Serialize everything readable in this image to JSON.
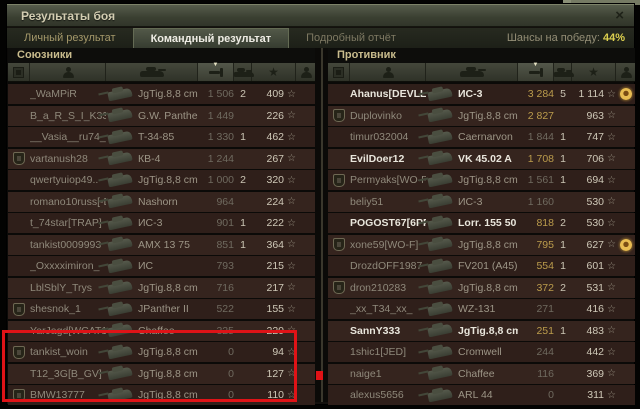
{
  "window": {
    "title": "Результаты боя",
    "close_icon": "×"
  },
  "tabs": [
    {
      "label": "Личный результат"
    },
    {
      "label": "Командный результат"
    },
    {
      "label": "Подробный отчёт"
    }
  ],
  "chances": {
    "label": "Шансы на победу:",
    "value": "44%"
  },
  "icons": {
    "star_outline": "☆",
    "star_filled": "★",
    "sort_arrow": "▼"
  },
  "columns": [
    "platoon",
    "player",
    "vehicle",
    "damage",
    "frags",
    "experience",
    "achievements"
  ],
  "colors": {
    "accent_gold": "#ddd04f",
    "damage_gold": "#bb9c4c",
    "annotation_red": "#df1317"
  },
  "allies": {
    "title": "Союзники",
    "rows": [
      {
        "name": "_WaMPiR",
        "tank": "JgTig.8,8 cm",
        "dmg": "1 506",
        "kills": "2",
        "xp": "409",
        "platoon": false,
        "medal": false,
        "bright": false,
        "gold": false
      },
      {
        "name": "B_a_R_S_I_K33rus..",
        "tank": "G.W. Panther",
        "dmg": "1 449",
        "kills": "",
        "xp": "226",
        "platoon": false,
        "medal": false,
        "bright": false,
        "gold": false
      },
      {
        "name": "__Vasia__ru74_",
        "tank": "T-34-85",
        "dmg": "1 330",
        "kills": "1",
        "xp": "462",
        "platoon": false,
        "medal": false,
        "bright": false,
        "gold": false
      },
      {
        "name": "vartanush28",
        "tank": "КВ-4",
        "dmg": "1 244",
        "kills": "",
        "xp": "267",
        "platoon": true,
        "medal": false,
        "bright": false,
        "gold": false
      },
      {
        "name": "qwertyuiop49..",
        "tank": "JgTig.8,8 cm",
        "dmg": "1 000",
        "kills": "2",
        "xp": "320",
        "platoon": false,
        "medal": false,
        "bright": false,
        "gold": false
      },
      {
        "name": "romano10russ[-DOG]",
        "tank": "Nashorn",
        "dmg": "964",
        "kills": "",
        "xp": "224",
        "platoon": false,
        "medal": false,
        "bright": false,
        "gold": false
      },
      {
        "name": "t_74star[TRAP]",
        "tank": "ИС-3",
        "dmg": "901",
        "kills": "1",
        "xp": "222",
        "platoon": false,
        "medal": false,
        "bright": false,
        "gold": false
      },
      {
        "name": "tankist0009993",
        "tank": "AMX 13 75",
        "dmg": "851",
        "kills": "1",
        "xp": "364",
        "platoon": false,
        "medal": false,
        "bright": false,
        "gold": false
      },
      {
        "name": "_Oxxxximiron_",
        "tank": "ИС",
        "dmg": "793",
        "kills": "",
        "xp": "215",
        "platoon": false,
        "medal": false,
        "bright": false,
        "gold": false
      },
      {
        "name": "LblSblY_Trys",
        "tank": "JgTig.8,8 cm",
        "dmg": "716",
        "kills": "",
        "xp": "217",
        "platoon": false,
        "medal": false,
        "bright": false,
        "gold": false
      },
      {
        "name": "shesnok_1",
        "tank": "JPanther II",
        "dmg": "522",
        "kills": "",
        "xp": "155",
        "platoon": true,
        "medal": false,
        "bright": false,
        "gold": false
      },
      {
        "name": "YarJagd[WCAT1]",
        "tank": "Chaffee",
        "dmg": "325",
        "kills": "",
        "xp": "220",
        "platoon": false,
        "medal": false,
        "bright": false,
        "gold": false
      },
      {
        "name": "tankist_woin",
        "tank": "JgTig.8,8 cm",
        "dmg": "0",
        "kills": "",
        "xp": "94",
        "platoon": true,
        "medal": false,
        "bright": false,
        "gold": false
      },
      {
        "name": "T12_3G[B_GV]",
        "tank": "JgTig.8,8 cm",
        "dmg": "0",
        "kills": "",
        "xp": "127",
        "platoon": false,
        "medal": false,
        "bright": false,
        "gold": false
      },
      {
        "name": "BMW13777",
        "tank": "JgTig.8,8 cm",
        "dmg": "0",
        "kills": "",
        "xp": "110",
        "platoon": true,
        "medal": false,
        "bright": false,
        "gold": false
      }
    ]
  },
  "enemies": {
    "title": "Противник",
    "rows": [
      {
        "name": "Ahanus[DEVLL]",
        "tank": "ИС-3",
        "dmg": "3 284",
        "kills": "5",
        "xp": "1 114",
        "platoon": false,
        "medal": true,
        "bright": true,
        "gold": true
      },
      {
        "name": "Duplovinko",
        "tank": "JgTig.8,8 cm",
        "dmg": "2 827",
        "kills": "",
        "xp": "963",
        "platoon": true,
        "medal": false,
        "bright": false,
        "gold": true
      },
      {
        "name": "timur032004",
        "tank": "Caernarvon",
        "dmg": "1 844",
        "kills": "1",
        "xp": "747",
        "platoon": false,
        "medal": false,
        "bright": false,
        "gold": false
      },
      {
        "name": "EvilDoer12",
        "tank": "VK 45.02 A",
        "dmg": "1 708",
        "kills": "1",
        "xp": "706",
        "platoon": false,
        "medal": false,
        "bright": true,
        "gold": true
      },
      {
        "name": "Permyaks[WO-F]",
        "tank": "JgTig.8,8 cm",
        "dmg": "1 561",
        "kills": "1",
        "xp": "694",
        "platoon": true,
        "medal": false,
        "bright": false,
        "gold": false
      },
      {
        "name": "beliy51",
        "tank": "ИС-3",
        "dmg": "1 160",
        "kills": "",
        "xp": "530",
        "platoon": false,
        "medal": false,
        "bright": false,
        "gold": false
      },
      {
        "name": "POGOST67[6PRO]",
        "tank": "Lorr. 155 50",
        "dmg": "818",
        "kills": "2",
        "xp": "530",
        "platoon": false,
        "medal": false,
        "bright": true,
        "gold": true
      },
      {
        "name": "xone59[WO-F]",
        "tank": "JgTig.8,8 cm",
        "dmg": "795",
        "kills": "1",
        "xp": "627",
        "platoon": true,
        "medal": true,
        "bright": false,
        "gold": true
      },
      {
        "name": "DrozdOFF1987",
        "tank": "FV201 (A45)",
        "dmg": "554",
        "kills": "1",
        "xp": "601",
        "platoon": false,
        "medal": false,
        "bright": false,
        "gold": true
      },
      {
        "name": "dron210283",
        "tank": "JgTig.8,8 cm",
        "dmg": "372",
        "kills": "2",
        "xp": "531",
        "platoon": true,
        "medal": false,
        "bright": false,
        "gold": true
      },
      {
        "name": "_xx_T34_xx_",
        "tank": "WZ-131",
        "dmg": "271",
        "kills": "",
        "xp": "416",
        "platoon": false,
        "medal": false,
        "bright": false,
        "gold": false
      },
      {
        "name": "SannY333",
        "tank": "JgTig.8,8 cm",
        "dmg": "251",
        "kills": "1",
        "xp": "483",
        "platoon": false,
        "medal": false,
        "bright": true,
        "gold": true
      },
      {
        "name": "1shic1[JED]",
        "tank": "Cromwell",
        "dmg": "244",
        "kills": "",
        "xp": "442",
        "platoon": false,
        "medal": false,
        "bright": false,
        "gold": false
      },
      {
        "name": "naige1",
        "tank": "Chaffee",
        "dmg": "116",
        "kills": "",
        "xp": "369",
        "platoon": false,
        "medal": false,
        "bright": false,
        "gold": false
      },
      {
        "name": "alexus5656",
        "tank": "ARL 44",
        "dmg": "0",
        "kills": "",
        "xp": "311",
        "platoon": false,
        "medal": false,
        "bright": false,
        "gold": false
      }
    ]
  }
}
